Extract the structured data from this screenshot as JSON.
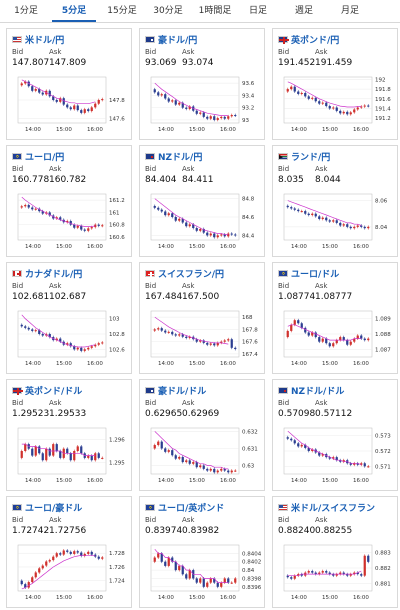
{
  "tabs": [
    {
      "label": "1分足",
      "active": false
    },
    {
      "label": "5分足",
      "active": true
    },
    {
      "label": "15分足",
      "active": false
    },
    {
      "label": "30分足",
      "active": false
    },
    {
      "label": "1時間足",
      "active": false
    },
    {
      "label": "日足",
      "active": false
    },
    {
      "label": "週足",
      "active": false
    },
    {
      "label": "月足",
      "active": false
    }
  ],
  "labels": {
    "bid": "Bid",
    "ask": "Ask"
  },
  "colors": {
    "up": "#d0312d",
    "down": "#2c3e91",
    "ma": "#cc33cc",
    "accent": "#1a5fb4"
  },
  "cards": [
    {
      "pair": "米ドル/円",
      "flag": "us-flag-icon",
      "bid": "147.807",
      "ask": "147.809",
      "chart_data": {
        "type": "candlestick",
        "x_ticks": [
          "14:00",
          "15:00",
          "16:00"
        ],
        "y_ticks": [
          "147.6",
          "147.8"
        ],
        "ylim": [
          147.55,
          148.05
        ],
        "candles": [
          147.98,
          148.0,
          147.95,
          147.9,
          147.92,
          147.88,
          147.86,
          147.9,
          147.84,
          147.8,
          147.78,
          147.82,
          147.75,
          147.72,
          147.7,
          147.74,
          147.69,
          147.66,
          147.7,
          147.68,
          147.72,
          147.76,
          147.8,
          147.81
        ],
        "ma": [
          148.02,
          148.0,
          147.98,
          147.96,
          147.94,
          147.92,
          147.9,
          147.88,
          147.86,
          147.84,
          147.82,
          147.81,
          147.79,
          147.78,
          147.77,
          147.77,
          147.76,
          147.76,
          147.76,
          147.76,
          147.77,
          147.78
        ]
      }
    },
    {
      "pair": "豪ドル/円",
      "flag": "au-flag-icon",
      "bid": "93.069",
      "ask": "93.074",
      "chart_data": {
        "type": "candlestick",
        "x_ticks": [
          "14:00",
          "15:00",
          "16:00"
        ],
        "y_ticks": [
          "93",
          "93.2",
          "93.4",
          "93.6"
        ],
        "ylim": [
          92.95,
          93.7
        ],
        "candles": [
          93.45,
          93.4,
          93.42,
          93.35,
          93.3,
          93.32,
          93.25,
          93.28,
          93.2,
          93.18,
          93.22,
          93.15,
          93.1,
          93.12,
          93.05,
          93.02,
          93.06,
          93.0,
          93.03,
          93.05,
          93.02,
          93.06,
          93.08,
          93.07
        ],
        "ma": [
          93.6,
          93.55,
          93.5,
          93.46,
          93.42,
          93.38,
          93.34,
          93.3,
          93.27,
          93.24,
          93.21,
          93.19,
          93.17,
          93.15,
          93.13,
          93.11,
          93.1,
          93.09,
          93.08,
          93.07,
          93.07,
          93.07
        ]
      }
    },
    {
      "pair": "英ポンド/円",
      "flag": "gb-flag-icon",
      "bid": "191.452",
      "ask": "191.459",
      "chart_data": {
        "type": "candlestick",
        "x_ticks": [
          "14:00",
          "15:00",
          "16:00"
        ],
        "y_ticks": [
          "191.2",
          "191.4",
          "191.6",
          "191.8",
          "192"
        ],
        "ylim": [
          191.1,
          192.05
        ],
        "candles": [
          191.8,
          191.85,
          191.75,
          191.7,
          191.72,
          191.65,
          191.6,
          191.62,
          191.55,
          191.5,
          191.52,
          191.45,
          191.4,
          191.42,
          191.35,
          191.3,
          191.33,
          191.28,
          191.32,
          191.38,
          191.42,
          191.44,
          191.46,
          191.45
        ],
        "ma": [
          191.95,
          191.92,
          191.88,
          191.84,
          191.8,
          191.76,
          191.72,
          191.68,
          191.64,
          191.6,
          191.57,
          191.54,
          191.51,
          191.49,
          191.47,
          191.45,
          191.44,
          191.43,
          191.43,
          191.43,
          191.44,
          191.44
        ]
      }
    },
    {
      "pair": "ユーロ/円",
      "flag": "eu-flag-icon",
      "bid": "160.778",
      "ask": "160.782",
      "chart_data": {
        "type": "candlestick",
        "x_ticks": [
          "14:00",
          "15:00",
          "16:00"
        ],
        "y_ticks": [
          "160.6",
          "160.8",
          "161",
          "161.2"
        ],
        "ylim": [
          160.55,
          161.3
        ],
        "candles": [
          161.1,
          161.12,
          161.08,
          161.05,
          161.06,
          161.02,
          160.98,
          161.0,
          160.95,
          160.9,
          160.92,
          160.88,
          160.84,
          160.86,
          160.8,
          160.75,
          160.78,
          160.72,
          160.7,
          160.74,
          160.76,
          160.8,
          160.78,
          160.79
        ],
        "ma": [
          161.25,
          161.2,
          161.16,
          161.12,
          161.08,
          161.05,
          161.02,
          160.99,
          160.96,
          160.93,
          160.9,
          160.88,
          160.86,
          160.84,
          160.82,
          160.8,
          160.79,
          160.78,
          160.77,
          160.77,
          160.77,
          160.78
        ]
      }
    },
    {
      "pair": "NZドル/円",
      "flag": "nz-flag-icon",
      "bid": "84.404",
      "ask": "84.411",
      "chart_data": {
        "type": "candlestick",
        "x_ticks": [
          "14:00",
          "15:00",
          "16:00"
        ],
        "y_ticks": [
          "84.4",
          "84.6",
          "84.8"
        ],
        "ylim": [
          84.35,
          84.85
        ],
        "candles": [
          84.7,
          84.68,
          84.66,
          84.62,
          84.64,
          84.6,
          84.56,
          84.58,
          84.54,
          84.5,
          84.52,
          84.48,
          84.45,
          84.47,
          84.43,
          84.4,
          84.42,
          84.38,
          84.4,
          84.41,
          84.39,
          84.42,
          84.41,
          84.4
        ],
        "ma": [
          84.8,
          84.77,
          84.74,
          84.71,
          84.68,
          84.65,
          84.62,
          84.6,
          84.58,
          84.56,
          84.54,
          84.52,
          84.5,
          84.48,
          84.46,
          84.45,
          84.44,
          84.43,
          84.42,
          84.42,
          84.41,
          84.41
        ]
      }
    },
    {
      "pair": "ランド/円",
      "flag": "za-flag-icon",
      "bid": "8.035",
      "ask": "8.044",
      "chart_data": {
        "type": "candlestick",
        "x_ticks": [
          "14:00",
          "15:00",
          "16:00"
        ],
        "y_ticks": [
          "8.04",
          "8.06"
        ],
        "ylim": [
          8.03,
          8.065
        ],
        "candles": [
          8.055,
          8.054,
          8.053,
          8.052,
          8.052,
          8.05,
          8.049,
          8.05,
          8.048,
          8.046,
          8.047,
          8.045,
          8.044,
          8.045,
          8.043,
          8.041,
          8.042,
          8.04,
          8.039,
          8.04,
          8.041,
          8.04,
          8.039,
          8.04
        ],
        "ma": [
          8.06,
          8.059,
          8.058,
          8.057,
          8.056,
          8.055,
          8.054,
          8.053,
          8.052,
          8.051,
          8.05,
          8.049,
          8.048,
          8.047,
          8.046,
          8.045,
          8.044,
          8.043,
          8.043,
          8.042,
          8.042,
          8.041
        ]
      }
    },
    {
      "pair": "カナダドル/円",
      "flag": "ca-flag-icon",
      "bid": "102.681",
      "ask": "102.687",
      "chart_data": {
        "type": "candlestick",
        "x_ticks": [
          "14:00",
          "15:00",
          "16:00"
        ],
        "y_ticks": [
          "102.6",
          "102.8",
          "103"
        ],
        "ylim": [
          102.5,
          103.1
        ],
        "candles": [
          102.9,
          102.88,
          102.86,
          102.84,
          102.85,
          102.8,
          102.78,
          102.8,
          102.76,
          102.72,
          102.74,
          102.7,
          102.66,
          102.68,
          102.64,
          102.6,
          102.62,
          102.58,
          102.6,
          102.62,
          102.64,
          102.66,
          102.68,
          102.69
        ],
        "ma": [
          103.05,
          103.0,
          102.96,
          102.92,
          102.88,
          102.85,
          102.82,
          102.79,
          102.76,
          102.74,
          102.72,
          102.7,
          102.68,
          102.66,
          102.65,
          102.64,
          102.63,
          102.63,
          102.63,
          102.64,
          102.65,
          102.66
        ]
      }
    },
    {
      "pair": "スイスフラン/円",
      "flag": "ch-flag-icon",
      "bid": "167.484",
      "ask": "167.500",
      "chart_data": {
        "type": "candlestick",
        "x_ticks": [
          "14:00",
          "15:00",
          "16:00"
        ],
        "y_ticks": [
          "167.4",
          "167.6",
          "167.8",
          "168"
        ],
        "ylim": [
          167.35,
          168.1
        ],
        "candles": [
          167.8,
          167.82,
          167.78,
          167.75,
          167.76,
          167.72,
          167.7,
          167.72,
          167.68,
          167.66,
          167.68,
          167.64,
          167.6,
          167.62,
          167.58,
          167.55,
          167.57,
          167.54,
          167.58,
          167.6,
          167.62,
          167.64,
          167.5,
          167.48
        ],
        "ma": [
          168.0,
          167.96,
          167.92,
          167.88,
          167.84,
          167.81,
          167.78,
          167.75,
          167.72,
          167.7,
          167.68,
          167.66,
          167.64,
          167.62,
          167.61,
          167.6,
          167.59,
          167.58,
          167.58,
          167.58,
          167.57,
          167.56
        ]
      }
    },
    {
      "pair": "ユーロ/ドル",
      "flag": "eu-flag-icon",
      "bid": "1.08774",
      "ask": "1.08777",
      "chart_data": {
        "type": "candlestick",
        "x_ticks": [
          "14:00",
          "15:00",
          "16:00"
        ],
        "y_ticks": [
          "1.087",
          "1.088",
          "1.089"
        ],
        "ylim": [
          1.0865,
          1.0895
        ],
        "candles": [
          1.0882,
          1.0886,
          1.0889,
          1.0887,
          1.0884,
          1.0881,
          1.0879,
          1.0881,
          1.0878,
          1.0875,
          1.0877,
          1.0874,
          1.0872,
          1.0874,
          1.0876,
          1.0878,
          1.0876,
          1.0873,
          1.0875,
          1.0877,
          1.0879,
          1.0877,
          1.0876,
          1.0877
        ],
        "ma": [
          1.0885,
          1.0886,
          1.0886,
          1.0885,
          1.0884,
          1.0883,
          1.0882,
          1.0881,
          1.088,
          1.0879,
          1.0878,
          1.0877,
          1.0876,
          1.0876,
          1.0876,
          1.0876,
          1.0876,
          1.0876,
          1.0876,
          1.0877,
          1.0877,
          1.0877
        ]
      }
    },
    {
      "pair": "英ポンド/ドル",
      "flag": "gb-flag-icon",
      "bid": "1.29523",
      "ask": "1.29533",
      "chart_data": {
        "type": "candlestick",
        "x_ticks": [
          "14:00",
          "15:00",
          "16:00"
        ],
        "y_ticks": [
          "1.295",
          "1.296"
        ],
        "ylim": [
          1.2945,
          1.2965
        ],
        "candles": [
          1.2955,
          1.2958,
          1.2956,
          1.2953,
          1.2957,
          1.2954,
          1.2951,
          1.2956,
          1.2953,
          1.2958,
          1.2955,
          1.2952,
          1.2956,
          1.2954,
          1.2951,
          1.2955,
          1.2957,
          1.2954,
          1.2952,
          1.2953,
          1.2951,
          1.2954,
          1.2952,
          1.2952
        ],
        "ma": [
          1.2958,
          1.2958,
          1.2957,
          1.2957,
          1.2957,
          1.2956,
          1.2956,
          1.2956,
          1.2955,
          1.2955,
          1.2955,
          1.2955,
          1.2954,
          1.2954,
          1.2954,
          1.2954,
          1.2954,
          1.2954,
          1.2953,
          1.2953,
          1.2953,
          1.2953
        ]
      }
    },
    {
      "pair": "豪ドル/ドル",
      "flag": "au-flag-icon",
      "bid": "0.62965",
      "ask": "0.62969",
      "chart_data": {
        "type": "candlestick",
        "x_ticks": [
          "14:00",
          "15:00",
          "16:00"
        ],
        "y_ticks": [
          "0.63",
          "0.631",
          "0.632"
        ],
        "ylim": [
          0.6295,
          0.6322
        ],
        "candles": [
          0.6312,
          0.6314,
          0.631,
          0.6308,
          0.6309,
          0.6306,
          0.6304,
          0.6305,
          0.6302,
          0.6303,
          0.6301,
          0.6302,
          0.6299,
          0.63,
          0.6298,
          0.6297,
          0.6298,
          0.6296,
          0.6297,
          0.6298,
          0.6297,
          0.6296,
          0.6297,
          0.6297
        ],
        "ma": [
          0.632,
          0.6318,
          0.6316,
          0.6314,
          0.6312,
          0.631,
          0.6309,
          0.6307,
          0.6306,
          0.6305,
          0.6304,
          0.6303,
          0.6302,
          0.6301,
          0.6301,
          0.63,
          0.63,
          0.6299,
          0.6299,
          0.6299,
          0.6298,
          0.6298
        ]
      }
    },
    {
      "pair": "NZドル/ドル",
      "flag": "nz-flag-icon",
      "bid": "0.57098",
      "ask": "0.57112",
      "chart_data": {
        "type": "candlestick",
        "x_ticks": [
          "14:00",
          "15:00",
          "16:00"
        ],
        "y_ticks": [
          "0.571",
          "0.572",
          "0.573"
        ],
        "ylim": [
          0.5705,
          0.5735
        ],
        "candles": [
          0.5728,
          0.5727,
          0.5725,
          0.5723,
          0.5724,
          0.5722,
          0.572,
          0.5721,
          0.5719,
          0.5717,
          0.5718,
          0.5716,
          0.5715,
          0.5716,
          0.5714,
          0.5713,
          0.5714,
          0.5712,
          0.5711,
          0.5712,
          0.5711,
          0.5712,
          0.571,
          0.571
        ],
        "ma": [
          0.5733,
          0.5731,
          0.5729,
          0.5727,
          0.5725,
          0.5724,
          0.5722,
          0.5721,
          0.572,
          0.5719,
          0.5718,
          0.5717,
          0.5716,
          0.5715,
          0.5714,
          0.5714,
          0.5713,
          0.5713,
          0.5712,
          0.5712,
          0.5712,
          0.5711
        ]
      }
    },
    {
      "pair": "ユーロ/豪ドル",
      "flag": "eu-flag-icon",
      "bid": "1.72742",
      "ask": "1.72756",
      "chart_data": {
        "type": "candlestick",
        "x_ticks": [
          "14:00",
          "15:00",
          "16:00"
        ],
        "y_ticks": [
          "1.724",
          "1.726",
          "1.728"
        ],
        "ylim": [
          1.7225,
          1.7292
        ],
        "candles": [
          1.7235,
          1.723,
          1.7238,
          1.7245,
          1.7252,
          1.7258,
          1.7262,
          1.7268,
          1.727,
          1.7275,
          1.728,
          1.7278,
          1.7284,
          1.7282,
          1.7279,
          1.7283,
          1.7281,
          1.7276,
          1.7279,
          1.7282,
          1.7278,
          1.7275,
          1.7272,
          1.7274
        ],
        "ma": [
          1.7228,
          1.723,
          1.7233,
          1.7236,
          1.724,
          1.7244,
          1.7248,
          1.7252,
          1.7256,
          1.726,
          1.7263,
          1.7266,
          1.7269,
          1.7271,
          1.7273,
          1.7275,
          1.7276,
          1.7277,
          1.7277,
          1.7277,
          1.7277,
          1.7276
        ]
      }
    },
    {
      "pair": "ユーロ/英ポンド",
      "flag": "eu-flag-icon",
      "bid": "0.83974",
      "ask": "0.83982",
      "chart_data": {
        "type": "candlestick",
        "x_ticks": [
          "14:00",
          "15:00",
          "16:00"
        ],
        "y_ticks": [
          "0.8396",
          "0.8398",
          "0.84",
          "0.8402",
          "0.8404"
        ],
        "ylim": [
          0.8395,
          0.8406
        ],
        "candles": [
          0.8403,
          0.8404,
          0.8402,
          0.8401,
          0.8403,
          0.8402,
          0.84,
          0.8401,
          0.8399,
          0.8398,
          0.84,
          0.8398,
          0.8397,
          0.8398,
          0.8396,
          0.8397,
          0.8398,
          0.8397,
          0.8396,
          0.8397,
          0.8398,
          0.8397,
          0.8397,
          0.8398
        ],
        "ma": [
          0.8405,
          0.8404,
          0.8404,
          0.8403,
          0.8403,
          0.8402,
          0.8402,
          0.8401,
          0.8401,
          0.84,
          0.84,
          0.8399,
          0.8399,
          0.8399,
          0.8398,
          0.8398,
          0.8398,
          0.8398,
          0.8397,
          0.8397,
          0.8397,
          0.8397
        ]
      }
    },
    {
      "pair": "米ドル/スイスフラン",
      "flag": "us-flag-icon",
      "bid": "0.88240",
      "ask": "0.88255",
      "chart_data": {
        "type": "candlestick",
        "x_ticks": [
          "14:00",
          "15:00",
          "16:00"
        ],
        "y_ticks": [
          "0.881",
          "0.882",
          "0.883"
        ],
        "ylim": [
          0.8805,
          0.8835
        ],
        "candles": [
          0.8814,
          0.8813,
          0.8815,
          0.8816,
          0.8815,
          0.8817,
          0.8818,
          0.8817,
          0.8816,
          0.8817,
          0.8818,
          0.8817,
          0.8816,
          0.8815,
          0.8816,
          0.8817,
          0.8816,
          0.8815,
          0.8816,
          0.8817,
          0.8816,
          0.8815,
          0.8828,
          0.8824
        ],
        "ma": [
          0.8815,
          0.8815,
          0.8815,
          0.8815,
          0.8816,
          0.8816,
          0.8816,
          0.8816,
          0.8816,
          0.8816,
          0.8816,
          0.8816,
          0.8816,
          0.8816,
          0.8816,
          0.8816,
          0.8816,
          0.8816,
          0.8816,
          0.8816,
          0.8817,
          0.8818
        ]
      }
    }
  ]
}
